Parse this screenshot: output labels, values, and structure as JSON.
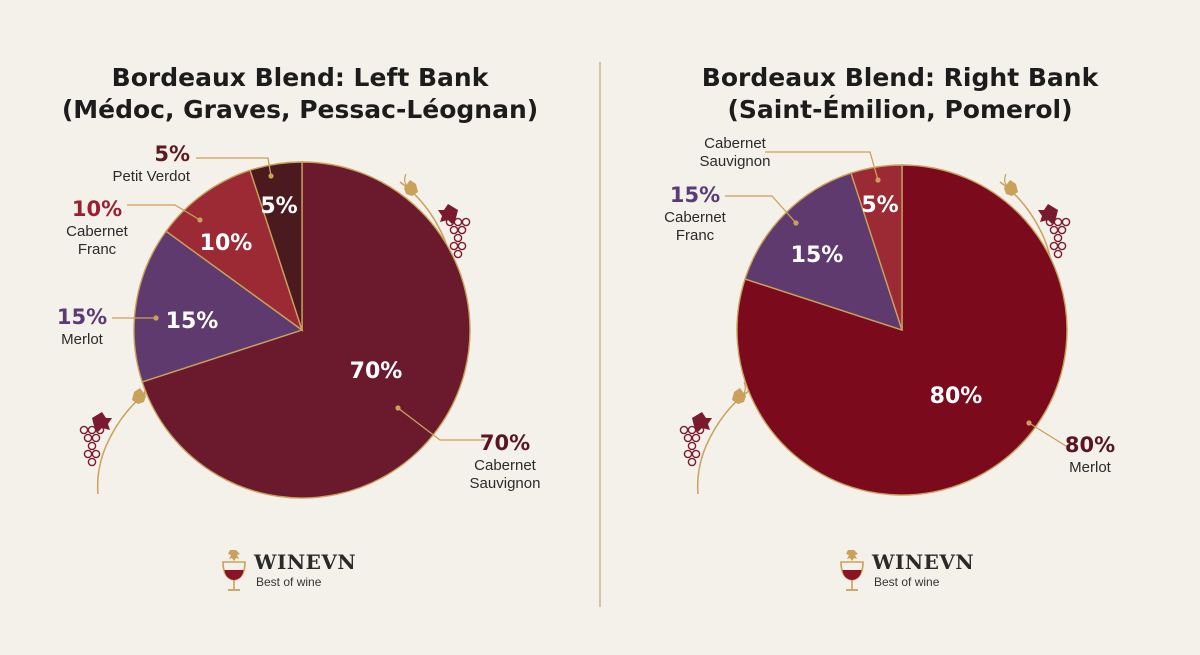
{
  "brand": {
    "name": "WINEVN",
    "tagline": "Best of wine",
    "logo_icon": "wine-glass-icon"
  },
  "colors": {
    "background": "#f4f1ea",
    "divider": "#d8c49a",
    "gold": "#c9a15a",
    "cabernet_sauvignon_left": "#6a1a2c",
    "merlot_left": "#5e3a6e",
    "cabernet_franc_left": "#9b2a34",
    "petit_verdot_left": "#4a1a1e",
    "merlot_right": "#7a0a1c",
    "cabernet_franc_right": "#5e3a6e",
    "cabernet_sauvignon_right": "#9b2a34"
  },
  "chart_data": [
    {
      "type": "pie",
      "title_line1": "Bordeaux Blend: Left Bank",
      "title_line2": "(Médoc, Graves, Pessac-Léognan)",
      "slices": [
        {
          "value": 70,
          "inner_label": "70%",
          "callout_pct": "70%",
          "callout_name": [
            "Cabernet",
            "Sauvignon"
          ],
          "color": "#6a1a2c",
          "pct_color": "#5a1524"
        },
        {
          "value": 15,
          "inner_label": "15%",
          "callout_pct": "15%",
          "callout_name": [
            "Merlot"
          ],
          "color": "#5e3a6e",
          "pct_color": "#5b3a78"
        },
        {
          "value": 10,
          "inner_label": "10%",
          "callout_pct": "10%",
          "callout_name": [
            "Cabernet",
            "Franc"
          ],
          "color": "#9b2a34",
          "pct_color": "#9a2030"
        },
        {
          "value": 5,
          "inner_label": "5%",
          "callout_pct": "5%",
          "callout_name": [
            "Petit Verdot"
          ],
          "color": "#4a1a1e",
          "pct_color": "#5a1a20"
        }
      ]
    },
    {
      "type": "pie",
      "title_line1": "Bordeaux Blend: Right Bank",
      "title_line2": "(Saint-Émilion, Pomerol)",
      "slices": [
        {
          "value": 80,
          "inner_label": "80%",
          "callout_pct": "80%",
          "callout_name": [
            "Merlot"
          ],
          "color": "#7a0a1c",
          "pct_color": "#5a1524"
        },
        {
          "value": 15,
          "inner_label": "15%",
          "callout_pct": "15%",
          "callout_name": [
            "Cabernet",
            "Franc"
          ],
          "color": "#5e3a6e",
          "pct_color": "#5b3a78"
        },
        {
          "value": 5,
          "inner_label": "5%",
          "callout_pct": "",
          "callout_name": [
            "Cabernet",
            "Sauvignon"
          ],
          "color": "#9b2a34",
          "pct_color": "#9a2030"
        }
      ]
    }
  ]
}
